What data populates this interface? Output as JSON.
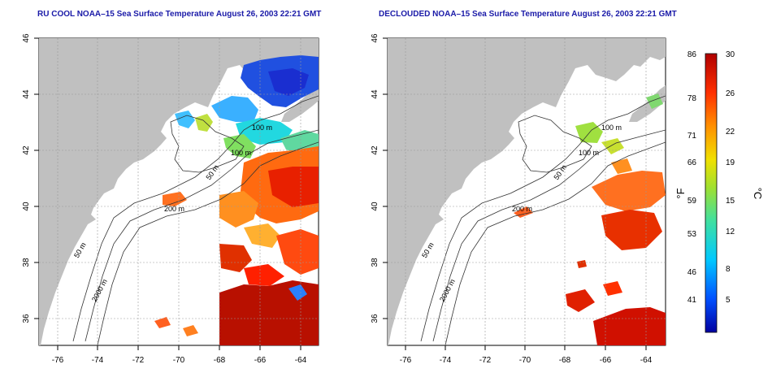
{
  "panels": [
    {
      "title": "RU COOL NOAA–15 Sea Surface Temperature August 26, 2003 22:21 GMT",
      "x_ticks": [
        "-76",
        "-74",
        "-72",
        "-70",
        "-68",
        "-66",
        "-64"
      ],
      "y_ticks": [
        "46",
        "44",
        "42",
        "40",
        "38",
        "36"
      ],
      "contour_labels": [
        "100 m",
        "100 m",
        "50 m",
        "200 m",
        "50 m",
        "2000 m"
      ]
    },
    {
      "title": "DECLOUDED NOAA–15 Sea Surface Temperature August 26, 2003 22:21 GMT",
      "x_ticks": [
        "-76",
        "-74",
        "-72",
        "-70",
        "-68",
        "-66",
        "-64"
      ],
      "y_ticks": [
        "46",
        "44",
        "42",
        "40",
        "38",
        "36"
      ],
      "contour_labels": [
        "100 m",
        "100 m",
        "50 m",
        "200 m",
        "50 m",
        "2000 m"
      ]
    }
  ],
  "colorbar": {
    "fahrenheit_labels": [
      "86",
      "78",
      "71",
      "66",
      "59",
      "53",
      "46",
      "41"
    ],
    "celsius_labels": [
      "30",
      "26",
      "22",
      "19",
      "15",
      "12",
      "8",
      "5"
    ],
    "fahrenheit_unit": "°F",
    "celsius_unit": "°C",
    "colors": [
      "#0000a0",
      "#0050ff",
      "#00c8ff",
      "#40e0a0",
      "#a0e030",
      "#f0e000",
      "#ff9000",
      "#ff3000",
      "#b00000"
    ]
  },
  "colors": {
    "land": "#c0c0c0",
    "ocean": "#ffffff",
    "title": "#1a1aa8",
    "grid": "#999999"
  }
}
